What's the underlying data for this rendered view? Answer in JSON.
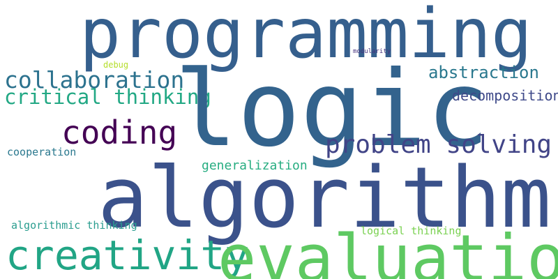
{
  "words": {
    "programming": {
      "text": "programming",
      "color": "#355f8d"
    },
    "logic": {
      "text": "logic",
      "color": "#33638d"
    },
    "algorithm": {
      "text": "algorithm",
      "color": "#3b528b"
    },
    "evaluation": {
      "text": "evaluation",
      "color": "#5ec962"
    },
    "creativity": {
      "text": "creativity",
      "color": "#21a585"
    },
    "coding": {
      "text": "coding",
      "color": "#440154"
    },
    "collaboration": {
      "text": "collaboration",
      "color": "#2c728e"
    },
    "critical_thinking": {
      "text": "critical thinking",
      "color": "#22a884"
    },
    "problem_solving": {
      "text": "problem solving",
      "color": "#414487"
    },
    "abstraction": {
      "text": "abstraction",
      "color": "#2a788e"
    },
    "decomposition": {
      "text": "decomposition",
      "color": "#3e4989"
    },
    "generalization": {
      "text": "generalization",
      "color": "#27ad81"
    },
    "cooperation": {
      "text": "cooperation",
      "color": "#2a788e"
    },
    "algorithmic_thinking": {
      "text": "algorithmic thinking",
      "color": "#2a9d8f"
    },
    "logical_thinking": {
      "text": "logical thinking",
      "color": "#7ad151"
    },
    "debug": {
      "text": "debug",
      "color": "#b5de2b"
    },
    "modularity": {
      "text": "modularity",
      "color": "#46327e"
    }
  }
}
